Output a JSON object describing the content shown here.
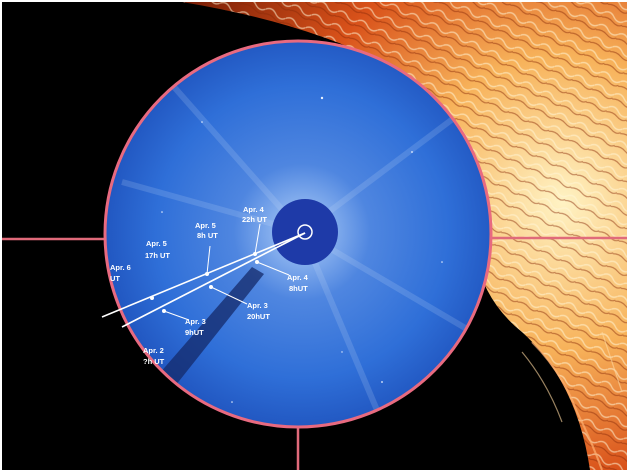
{
  "image": {
    "colors": {
      "background": "#000000",
      "sun_surface": "#c2410c",
      "sun_bright": "#fde68a",
      "coronagraph_disk": "#2f6fd8",
      "occulter": "#1e3aa8",
      "crosshair": "#e06a7a",
      "rim": "#e86a80",
      "track_line": "#ffffff"
    },
    "markers": [
      {
        "line1": "Apr. 4",
        "line2": "22h UT"
      },
      {
        "line1": "Apr. 5",
        "line2": "8h UT"
      },
      {
        "line1": "Apr. 5",
        "line2": "17h UT"
      },
      {
        "line1": "Apr. 6",
        "line2": "UT"
      },
      {
        "line1": "Apr. 4",
        "line2": "8hUT"
      },
      {
        "line1": "Apr. 3",
        "line2": "20hUT"
      },
      {
        "line1": "Apr. 3",
        "line2": "9hUT"
      },
      {
        "line1": "Apr. 2",
        "line2": "?h UT"
      }
    ]
  }
}
